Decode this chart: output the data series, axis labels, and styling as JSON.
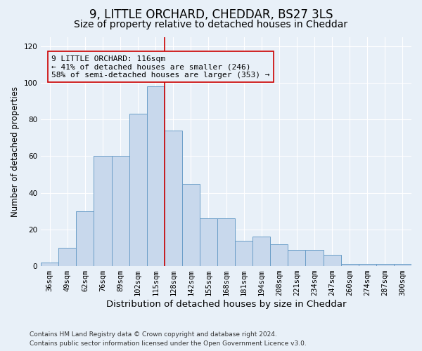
{
  "title1": "9, LITTLE ORCHARD, CHEDDAR, BS27 3LS",
  "title2": "Size of property relative to detached houses in Cheddar",
  "xlabel": "Distribution of detached houses by size in Cheddar",
  "ylabel": "Number of detached properties",
  "footnote1": "Contains HM Land Registry data © Crown copyright and database right 2024.",
  "footnote2": "Contains public sector information licensed under the Open Government Licence v3.0.",
  "bar_labels": [
    "36sqm",
    "49sqm",
    "62sqm",
    "76sqm",
    "89sqm",
    "102sqm",
    "115sqm",
    "128sqm",
    "142sqm",
    "155sqm",
    "168sqm",
    "181sqm",
    "194sqm",
    "208sqm",
    "221sqm",
    "234sqm",
    "247sqm",
    "260sqm",
    "274sqm",
    "287sqm",
    "300sqm"
  ],
  "bar_heights": [
    2,
    10,
    30,
    60,
    60,
    83,
    98,
    74,
    45,
    26,
    26,
    14,
    16,
    12,
    9,
    9,
    6,
    1,
    1,
    1,
    1
  ],
  "bar_color": "#c8d8ec",
  "bar_edge_color": "#6b9ec8",
  "vline_x": 6,
  "vline_color": "#cc0000",
  "annotation_text": "9 LITTLE ORCHARD: 116sqm\n← 41% of detached houses are smaller (246)\n58% of semi-detached houses are larger (353) →",
  "ylim": [
    0,
    125
  ],
  "yticks": [
    0,
    20,
    40,
    60,
    80,
    100,
    120
  ],
  "bg_color": "#e8f0f8",
  "grid_color": "#ffffff",
  "title1_fontsize": 12,
  "title2_fontsize": 10,
  "xlabel_fontsize": 9.5,
  "ylabel_fontsize": 8.5,
  "tick_fontsize": 7.5,
  "annotation_fontsize": 8,
  "footnote_fontsize": 6.5
}
